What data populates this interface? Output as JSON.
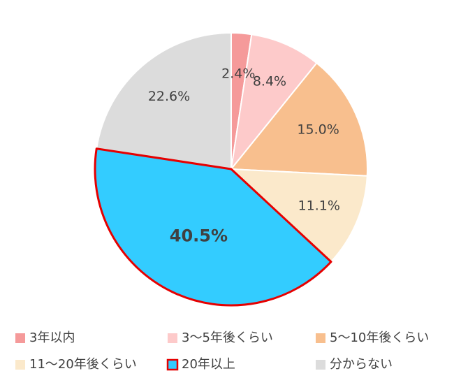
{
  "chart_data": {
    "type": "pie",
    "categories": [
      "3年以内",
      "3〜5年後くらい",
      "5〜10年後くらい",
      "11〜20年後くらい",
      "20年以上",
      "分からない"
    ],
    "values": [
      2.4,
      8.4,
      15.0,
      11.1,
      40.5,
      22.6
    ],
    "value_labels": [
      "2.4%",
      "8.4%",
      "15.0%",
      "11.1%",
      "40.5%",
      "22.6%"
    ],
    "colors": [
      "#f59a9a",
      "#fdcaca",
      "#f8bf8e",
      "#fbe9cb",
      "#33ccff",
      "#dcdcdc"
    ],
    "highlight_index": 4,
    "highlight_color": "#e60000",
    "legend": "bottom"
  }
}
